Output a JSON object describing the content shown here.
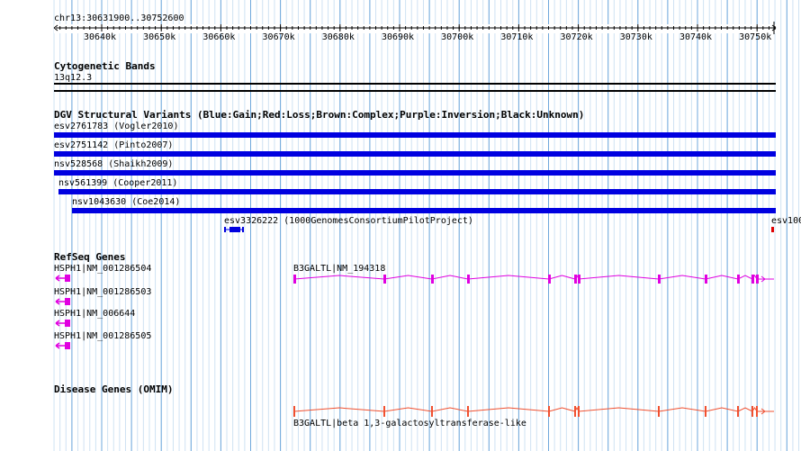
{
  "ruler": {
    "title": "chr13:30631900..30752600",
    "ticks": [
      "30640k",
      "30650k",
      "30660k",
      "30670k",
      "30680k",
      "30690k",
      "30700k",
      "30710k",
      "30720k",
      "30730k",
      "30740k",
      "30750k"
    ]
  },
  "cytoband": {
    "title": "Cytogenetic Bands",
    "band": "13q12.3"
  },
  "dgv": {
    "title": "DGV Structural Variants (Blue:Gain;Red:Loss;Brown:Complex;Purple:Inversion;Black:Unknown)",
    "variants": [
      {
        "label": "esv2761783 (Vogler2010)",
        "color": "#0000e0"
      },
      {
        "label": "esv2751142 (Pinto2007)",
        "color": "#0000e0"
      },
      {
        "label": "nsv528568 (Shaikh2009)",
        "color": "#0000e0"
      },
      {
        "label": "nsv561399 (Cooper2011)",
        "color": "#0000e0"
      },
      {
        "label": "nsv1043630 (Coe2014)",
        "color": "#0000e0"
      },
      {
        "label": "esv3326222 (1000GenomesConsortiumPilotProject)",
        "color": "#0000e0"
      },
      {
        "label": "esv100",
        "color": "#e00000"
      }
    ]
  },
  "refseq": {
    "title": "RefSeq Genes",
    "genes": [
      {
        "label": "HSPH1|NM_001286504"
      },
      {
        "label": "HSPH1|NM_001286503"
      },
      {
        "label": "HSPH1|NM_006644"
      },
      {
        "label": "HSPH1|NM_001286505"
      },
      {
        "label": "B3GALTL|NM_194318"
      }
    ],
    "color": "#e000e0"
  },
  "omim": {
    "title": "Disease Genes (OMIM)",
    "gene_label": "B3GALTL|beta 1,3-galactosyltransferase-like",
    "color": "#f05030"
  },
  "colors": {
    "grid_major": "#6fa8dc",
    "grid_minor": "#cfe2f3"
  }
}
